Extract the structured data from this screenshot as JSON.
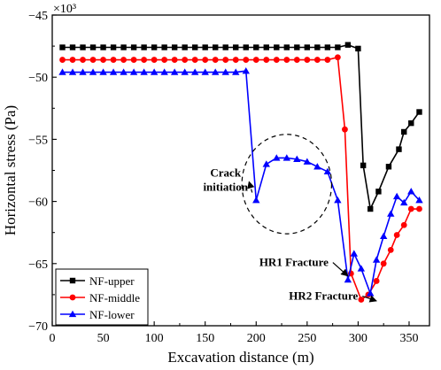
{
  "chart_data": {
    "type": "line",
    "xlabel": "Excavation distance (m)",
    "ylabel": "Horizontal stress (Pa)",
    "y_multiplier": "×10³",
    "xlim": [
      0,
      370
    ],
    "ylim": [
      -70,
      -45
    ],
    "x_ticks": [
      0,
      50,
      100,
      150,
      200,
      250,
      300,
      350
    ],
    "y_ticks": [
      -70,
      -65,
      -60,
      -55,
      -50,
      -45
    ],
    "grid": false,
    "legend_position": "bottom-left",
    "series": [
      {
        "name": "NF-upper",
        "color": "#000000",
        "marker": "square",
        "x": [
          10,
          20,
          30,
          40,
          50,
          60,
          70,
          80,
          90,
          100,
          110,
          120,
          130,
          140,
          150,
          160,
          170,
          180,
          190,
          200,
          210,
          220,
          230,
          240,
          250,
          260,
          270,
          280,
          290,
          300,
          305,
          312,
          320,
          330,
          340,
          345,
          352,
          360
        ],
        "y": [
          -47.6,
          -47.6,
          -47.6,
          -47.6,
          -47.6,
          -47.6,
          -47.6,
          -47.6,
          -47.6,
          -47.6,
          -47.6,
          -47.6,
          -47.6,
          -47.6,
          -47.6,
          -47.6,
          -47.6,
          -47.6,
          -47.6,
          -47.6,
          -47.6,
          -47.6,
          -47.6,
          -47.6,
          -47.6,
          -47.6,
          -47.6,
          -47.6,
          -47.4,
          -47.7,
          -57.1,
          -60.6,
          -59.2,
          -57.2,
          -55.8,
          -54.4,
          -53.7,
          -52.8
        ]
      },
      {
        "name": "NF-middle",
        "color": "#ff0000",
        "marker": "circle",
        "x": [
          10,
          20,
          30,
          40,
          50,
          60,
          70,
          80,
          90,
          100,
          110,
          120,
          130,
          140,
          150,
          160,
          170,
          180,
          190,
          200,
          210,
          220,
          230,
          240,
          250,
          260,
          270,
          280,
          287,
          293,
          303,
          310,
          318,
          325,
          332,
          338,
          345,
          352,
          360
        ],
        "y": [
          -48.6,
          -48.6,
          -48.6,
          -48.6,
          -48.6,
          -48.6,
          -48.6,
          -48.6,
          -48.6,
          -48.6,
          -48.6,
          -48.6,
          -48.6,
          -48.6,
          -48.6,
          -48.6,
          -48.6,
          -48.6,
          -48.6,
          -48.6,
          -48.6,
          -48.6,
          -48.6,
          -48.6,
          -48.6,
          -48.6,
          -48.6,
          -48.4,
          -54.2,
          -65.8,
          -67.9,
          -67.5,
          -66.4,
          -65.0,
          -63.9,
          -62.7,
          -61.9,
          -60.6,
          -60.6
        ]
      },
      {
        "name": "NF-lower",
        "color": "#0000ff",
        "marker": "triangle",
        "x": [
          10,
          20,
          30,
          40,
          50,
          60,
          70,
          80,
          90,
          100,
          110,
          120,
          130,
          140,
          150,
          160,
          170,
          180,
          190,
          200,
          210,
          220,
          230,
          240,
          250,
          260,
          270,
          280,
          290,
          296,
          303,
          312,
          318,
          325,
          332,
          338,
          345,
          352,
          360
        ],
        "y": [
          -49.6,
          -49.6,
          -49.6,
          -49.6,
          -49.6,
          -49.6,
          -49.6,
          -49.6,
          -49.6,
          -49.6,
          -49.6,
          -49.6,
          -49.6,
          -49.6,
          -49.6,
          -49.6,
          -49.6,
          -49.6,
          -49.5,
          -59.9,
          -57.0,
          -56.5,
          -56.5,
          -56.6,
          -56.8,
          -57.2,
          -57.6,
          -59.9,
          -66.3,
          -64.2,
          -65.4,
          -67.4,
          -64.7,
          -62.8,
          -61.0,
          -59.6,
          -60.1,
          -59.2,
          -59.9
        ]
      }
    ],
    "annotations": [
      {
        "text_lines": [
          "Crack",
          "initiation"
        ],
        "label_x": 170,
        "label_y": -58.0,
        "arrow_to_x": 193,
        "arrow_to_y": -58.4
      },
      {
        "text_lines": [
          "HR1 Fracture"
        ],
        "label_x": 237,
        "label_y": -65.2,
        "arrow_to_x": 290,
        "arrow_to_y": -66.0
      },
      {
        "text_lines": [
          "HR2 Fracture"
        ],
        "label_x": 266,
        "label_y": -67.9,
        "arrow_to_x": 318,
        "arrow_to_y": -68.0
      }
    ],
    "highlight_ellipse": {
      "cx": 230,
      "cy": -58.6,
      "rx": 44,
      "ry": 4.0,
      "dashed": true
    }
  }
}
